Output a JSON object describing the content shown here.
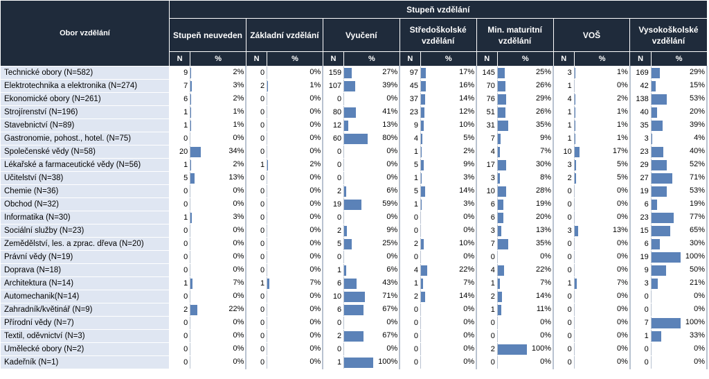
{
  "title": "Stupeň vzdělání",
  "row_header": "Obor vzdělání",
  "n_label": "N",
  "pct_label": "%",
  "groups": [
    "Stupeň neuveden",
    "Základní vzdělání",
    "Vyučení",
    "Středoškolské vzdělání",
    "Min. maturitní vzdělání",
    "VOŠ",
    "Vysokoškolské vzdělání"
  ],
  "rows": [
    {
      "label": "Technické obory (N=582)",
      "cells": [
        [
          9,
          "2%"
        ],
        [
          0,
          "0%"
        ],
        [
          159,
          "27%"
        ],
        [
          97,
          "17%"
        ],
        [
          145,
          "25%"
        ],
        [
          3,
          "1%"
        ],
        [
          169,
          "29%"
        ]
      ]
    },
    {
      "label": "Elektrotechnika a elektronika (N=274)",
      "cells": [
        [
          7,
          "3%"
        ],
        [
          2,
          "1%"
        ],
        [
          107,
          "39%"
        ],
        [
          45,
          "16%"
        ],
        [
          70,
          "26%"
        ],
        [
          1,
          "0%"
        ],
        [
          42,
          "15%"
        ]
      ]
    },
    {
      "label": "Ekonomické obory (N=261)",
      "cells": [
        [
          6,
          "2%"
        ],
        [
          0,
          "0%"
        ],
        [
          0,
          "0%"
        ],
        [
          37,
          "14%"
        ],
        [
          76,
          "29%"
        ],
        [
          4,
          "2%"
        ],
        [
          138,
          "53%"
        ]
      ]
    },
    {
      "label": "Strojírenství (N=196)",
      "cells": [
        [
          1,
          "1%"
        ],
        [
          0,
          "0%"
        ],
        [
          80,
          "41%"
        ],
        [
          23,
          "12%"
        ],
        [
          51,
          "26%"
        ],
        [
          1,
          "1%"
        ],
        [
          40,
          "20%"
        ]
      ]
    },
    {
      "label": "Stavebnictví (N=89)",
      "cells": [
        [
          1,
          "1%"
        ],
        [
          0,
          "0%"
        ],
        [
          12,
          "13%"
        ],
        [
          9,
          "10%"
        ],
        [
          31,
          "35%"
        ],
        [
          1,
          "1%"
        ],
        [
          35,
          "39%"
        ]
      ]
    },
    {
      "label": "Gastronomie, pohost., hotel. (N=75)",
      "cells": [
        [
          0,
          "0%"
        ],
        [
          0,
          "0%"
        ],
        [
          60,
          "80%"
        ],
        [
          4,
          "5%"
        ],
        [
          7,
          "9%"
        ],
        [
          1,
          "1%"
        ],
        [
          3,
          "4%"
        ]
      ]
    },
    {
      "label": "Společenské vědy (N=58)",
      "cells": [
        [
          20,
          "34%"
        ],
        [
          0,
          "0%"
        ],
        [
          0,
          "0%"
        ],
        [
          1,
          "2%"
        ],
        [
          4,
          "7%"
        ],
        [
          10,
          "17%"
        ],
        [
          23,
          "40%"
        ]
      ]
    },
    {
      "label": "Lékařské a farmaceutické vědy (N=56)",
      "cells": [
        [
          1,
          "2%"
        ],
        [
          1,
          "2%"
        ],
        [
          0,
          "0%"
        ],
        [
          5,
          "9%"
        ],
        [
          17,
          "30%"
        ],
        [
          3,
          "5%"
        ],
        [
          29,
          "52%"
        ]
      ]
    },
    {
      "label": "Učitelství (N=38)",
      "cells": [
        [
          5,
          "13%"
        ],
        [
          0,
          "0%"
        ],
        [
          0,
          "0%"
        ],
        [
          1,
          "3%"
        ],
        [
          3,
          "8%"
        ],
        [
          2,
          "5%"
        ],
        [
          27,
          "71%"
        ]
      ]
    },
    {
      "label": "Chemie (N=36)",
      "cells": [
        [
          0,
          "0%"
        ],
        [
          0,
          "0%"
        ],
        [
          2,
          "6%"
        ],
        [
          5,
          "14%"
        ],
        [
          10,
          "28%"
        ],
        [
          0,
          "0%"
        ],
        [
          19,
          "53%"
        ]
      ]
    },
    {
      "label": "Obchod (N=32)",
      "cells": [
        [
          0,
          "0%"
        ],
        [
          0,
          "0%"
        ],
        [
          19,
          "59%"
        ],
        [
          1,
          "3%"
        ],
        [
          6,
          "19%"
        ],
        [
          0,
          "0%"
        ],
        [
          6,
          "19%"
        ]
      ]
    },
    {
      "label": "Informatika (N=30)",
      "cells": [
        [
          1,
          "3%"
        ],
        [
          0,
          "0%"
        ],
        [
          0,
          "0%"
        ],
        [
          0,
          "0%"
        ],
        [
          6,
          "20%"
        ],
        [
          0,
          "0%"
        ],
        [
          23,
          "77%"
        ]
      ]
    },
    {
      "label": "Sociální služby (N=23)",
      "cells": [
        [
          0,
          "0%"
        ],
        [
          0,
          "0%"
        ],
        [
          2,
          "9%"
        ],
        [
          0,
          "0%"
        ],
        [
          3,
          "13%"
        ],
        [
          3,
          "13%"
        ],
        [
          15,
          "65%"
        ]
      ]
    },
    {
      "label": "Zemědělství, les. a zprac. dřeva (N=20)",
      "cells": [
        [
          0,
          "0%"
        ],
        [
          0,
          "0%"
        ],
        [
          5,
          "25%"
        ],
        [
          2,
          "10%"
        ],
        [
          7,
          "35%"
        ],
        [
          0,
          "0%"
        ],
        [
          6,
          "30%"
        ]
      ]
    },
    {
      "label": "Právní vědy (N=19)",
      "cells": [
        [
          0,
          "0%"
        ],
        [
          0,
          "0%"
        ],
        [
          0,
          "0%"
        ],
        [
          0,
          "0%"
        ],
        [
          0,
          "0%"
        ],
        [
          0,
          "0%"
        ],
        [
          19,
          "100%"
        ]
      ]
    },
    {
      "label": "Doprava (N=18)",
      "cells": [
        [
          0,
          "0%"
        ],
        [
          0,
          "0%"
        ],
        [
          1,
          "6%"
        ],
        [
          4,
          "22%"
        ],
        [
          4,
          "22%"
        ],
        [
          0,
          "0%"
        ],
        [
          9,
          "50%"
        ]
      ]
    },
    {
      "label": "Architektura (N=14)",
      "cells": [
        [
          1,
          "7%"
        ],
        [
          1,
          "7%"
        ],
        [
          6,
          "43%"
        ],
        [
          1,
          "7%"
        ],
        [
          1,
          "7%"
        ],
        [
          1,
          "7%"
        ],
        [
          3,
          "21%"
        ]
      ]
    },
    {
      "label": "Automechanik(N=14)",
      "cells": [
        [
          0,
          "0%"
        ],
        [
          0,
          "0%"
        ],
        [
          10,
          "71%"
        ],
        [
          2,
          "14%"
        ],
        [
          2,
          "14%"
        ],
        [
          0,
          "0%"
        ],
        [
          0,
          "0%"
        ]
      ]
    },
    {
      "label": "Zahradník/květinář (N=9)",
      "cells": [
        [
          2,
          "22%"
        ],
        [
          0,
          "0%"
        ],
        [
          6,
          "67%"
        ],
        [
          0,
          "0%"
        ],
        [
          1,
          "11%"
        ],
        [
          0,
          "0%"
        ],
        [
          0,
          "0%"
        ]
      ]
    },
    {
      "label": "Přírodní vědy (N=7)",
      "cells": [
        [
          0,
          "0%"
        ],
        [
          0,
          "0%"
        ],
        [
          0,
          "0%"
        ],
        [
          0,
          "0%"
        ],
        [
          0,
          "0%"
        ],
        [
          0,
          "0%"
        ],
        [
          7,
          "100%"
        ]
      ]
    },
    {
      "label": "Textil, oděvnictví (N=3)",
      "cells": [
        [
          0,
          "0%"
        ],
        [
          0,
          "0%"
        ],
        [
          2,
          "67%"
        ],
        [
          0,
          "0%"
        ],
        [
          0,
          "0%"
        ],
        [
          0,
          "0%"
        ],
        [
          1,
          "33%"
        ]
      ]
    },
    {
      "label": "Umělecké obory (N=2)",
      "cells": [
        [
          0,
          "0%"
        ],
        [
          0,
          "0%"
        ],
        [
          0,
          "0%"
        ],
        [
          0,
          "0%"
        ],
        [
          2,
          "100%"
        ],
        [
          0,
          "0%"
        ],
        [
          0,
          "0%"
        ]
      ]
    },
    {
      "label": "Kadeřník (N=1)",
      "cells": [
        [
          0,
          "0%"
        ],
        [
          0,
          "0%"
        ],
        [
          1,
          "100%"
        ],
        [
          0,
          "0%"
        ],
        [
          0,
          "0%"
        ],
        [
          0,
          "0%"
        ],
        [
          0,
          "0%"
        ]
      ]
    }
  ],
  "colors": {
    "header_bg": "#1f2b3b",
    "row_label_bg": "#dfe6f2",
    "bar": "#5b82b8"
  }
}
